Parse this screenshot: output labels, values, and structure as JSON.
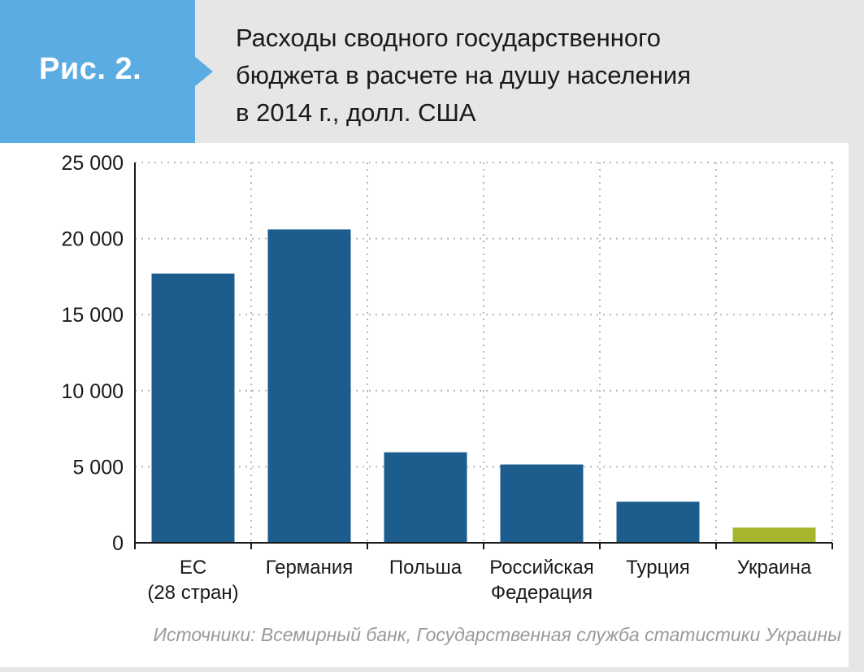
{
  "header": {
    "badge": "Рис. 2.",
    "title_lines": [
      "Расходы сводного государственного",
      "бюджета в расчете на душу населения",
      "в 2014 г., долл. США"
    ]
  },
  "colors": {
    "bar_default": "#1c5d8e",
    "bar_highlight": "#a7b52c",
    "badge": "#5aace2",
    "grid": "#b9b9b9"
  },
  "chart_data": {
    "type": "bar",
    "title": "Расходы сводного государственного бюджета в расчете на душу населения в 2014 г., долл. США",
    "categories": [
      [
        "ЕС",
        "(28 стран)"
      ],
      [
        "Германия"
      ],
      [
        "Польша"
      ],
      [
        "Российская",
        "Федерация"
      ],
      [
        "Турция"
      ],
      [
        "Украина"
      ]
    ],
    "values": [
      17700,
      20600,
      5950,
      5150,
      2700,
      1000
    ],
    "highlight_index": 5,
    "ylim": [
      0,
      25000
    ],
    "yticks": [
      0,
      5000,
      10000,
      15000,
      20000,
      25000
    ],
    "ytick_labels": [
      "0",
      "5 000",
      "10 000",
      "15 000",
      "20 000",
      "25 000"
    ],
    "grid": true,
    "xlabel": "",
    "ylabel": ""
  },
  "footer": {
    "source": "Источники: Всемирный банк, Государственная служба статистики Украины"
  }
}
